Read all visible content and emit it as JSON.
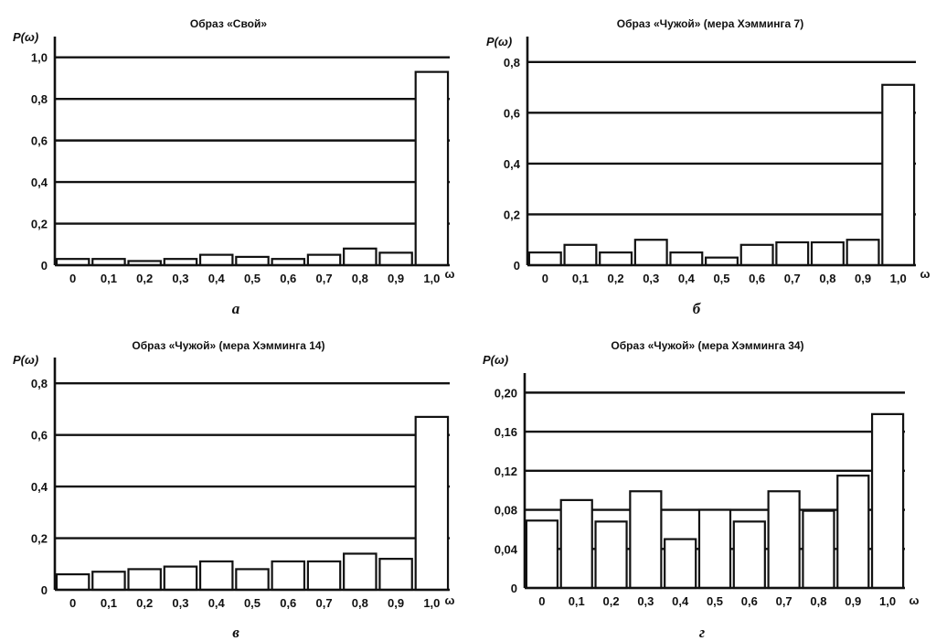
{
  "chart_data": [
    {
      "type": "bar",
      "title": "Образ «Свой»",
      "ylabel": "P(ω)",
      "xlabel": "ω",
      "sublabel": "а",
      "categories": [
        "0",
        "0,1",
        "0,2",
        "0,3",
        "0,4",
        "0,5",
        "0,6",
        "0,7",
        "0,8",
        "0,9",
        "1,0"
      ],
      "values": [
        0.03,
        0.03,
        0.02,
        0.03,
        0.05,
        0.04,
        0.03,
        0.05,
        0.08,
        0.06,
        0.93
      ],
      "yticks": [
        0,
        0.2,
        0.4,
        0.6,
        0.8,
        1.0
      ],
      "ytick_labels": [
        "0",
        "0,2",
        "0,4",
        "0,6",
        "0,8",
        "1,0"
      ],
      "ylim": [
        0,
        1.1
      ],
      "grid": true
    },
    {
      "type": "bar",
      "title": "Образ «Чужой» (мера Хэмминга 7)",
      "ylabel": "P(ω)",
      "xlabel": "ω",
      "sublabel": "б",
      "categories": [
        "0",
        "0,1",
        "0,2",
        "0,3",
        "0,4",
        "0,5",
        "0,6",
        "0,7",
        "0,8",
        "0,9",
        "1,0"
      ],
      "values": [
        0.05,
        0.08,
        0.05,
        0.1,
        0.05,
        0.03,
        0.08,
        0.09,
        0.09,
        0.1,
        0.71
      ],
      "yticks": [
        0,
        0.2,
        0.4,
        0.6,
        0.8
      ],
      "ytick_labels": [
        "0",
        "0,2",
        "0,4",
        "0,6",
        "0,8"
      ],
      "ylim": [
        0,
        0.9
      ],
      "grid": true
    },
    {
      "type": "bar",
      "title": "Образ «Чужой» (мера Хэмминга 14)",
      "ylabel": "P(ω)",
      "xlabel": "ω",
      "sublabel": "в",
      "categories": [
        "0",
        "0,1",
        "0,2",
        "0,3",
        "0,4",
        "0,5",
        "0,6",
        "0,7",
        "0,8",
        "0,9",
        "1,0"
      ],
      "values": [
        0.06,
        0.07,
        0.08,
        0.09,
        0.11,
        0.08,
        0.11,
        0.11,
        0.14,
        0.12,
        0.67
      ],
      "yticks": [
        0,
        0.2,
        0.4,
        0.6,
        0.8
      ],
      "ytick_labels": [
        "0",
        "0,2",
        "0,4",
        "0,6",
        "0,8"
      ],
      "ylim": [
        0,
        0.9
      ],
      "grid": true
    },
    {
      "type": "bar",
      "title": "Образ «Чужой» (мера Хэмминга 34)",
      "ylabel": "P(ω)",
      "xlabel": "ω",
      "sublabel": "г",
      "categories": [
        "0",
        "0,1",
        "0,2",
        "0,3",
        "0,4",
        "0,5",
        "0,6",
        "0,7",
        "0,8",
        "0,9",
        "1,0"
      ],
      "values": [
        0.069,
        0.09,
        0.068,
        0.099,
        0.05,
        0.08,
        0.068,
        0.099,
        0.079,
        0.115,
        0.178
      ],
      "yticks": [
        0,
        0.04,
        0.08,
        0.12,
        0.16,
        0.2
      ],
      "ytick_labels": [
        "0",
        "0,04",
        "0,08",
        "0,12",
        "0,16",
        "0,20"
      ],
      "ylim": [
        0,
        0.22
      ],
      "grid": true
    }
  ],
  "colors": {
    "axis": "#111111",
    "bar_fill": "#ffffff",
    "bar_stroke": "#111111"
  }
}
